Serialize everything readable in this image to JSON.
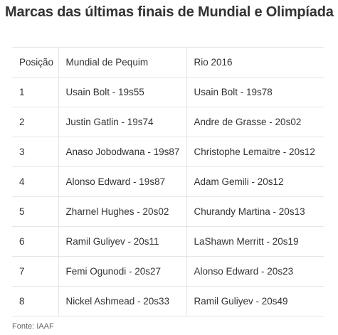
{
  "title": "Marcas das últimas finais de Mundial e Olimpíada",
  "table": {
    "headers": [
      "Posição",
      "Mundial de Pequim",
      "Rio 2016"
    ],
    "rows": [
      [
        "1",
        "Usain Bolt - 19s55",
        "Usain Bolt - 19s78"
      ],
      [
        "2",
        "Justin Gatlin - 19s74",
        "Andre de Grasse - 20s02"
      ],
      [
        "3",
        "Anaso Jobodwana - 19s87",
        "Christophe Lemaitre - 20s12"
      ],
      [
        "4",
        "Alonso Edward - 19s87",
        "Adam Gemili - 20s12"
      ],
      [
        "5",
        "Zharnel Hughes - 20s02",
        "Churandy Martina - 20s13"
      ],
      [
        "6",
        "Ramil Guliyev - 20s11",
        "LaShawn Merritt - 20s19"
      ],
      [
        "7",
        "Femi Ogunodi - 20s27",
        "Alonso Edward - 20s23"
      ],
      [
        "8",
        "Nickel Ashmead - 20s33",
        "Ramil Guliyev - 20s49"
      ]
    ]
  },
  "source": "Fonte: IAAF"
}
